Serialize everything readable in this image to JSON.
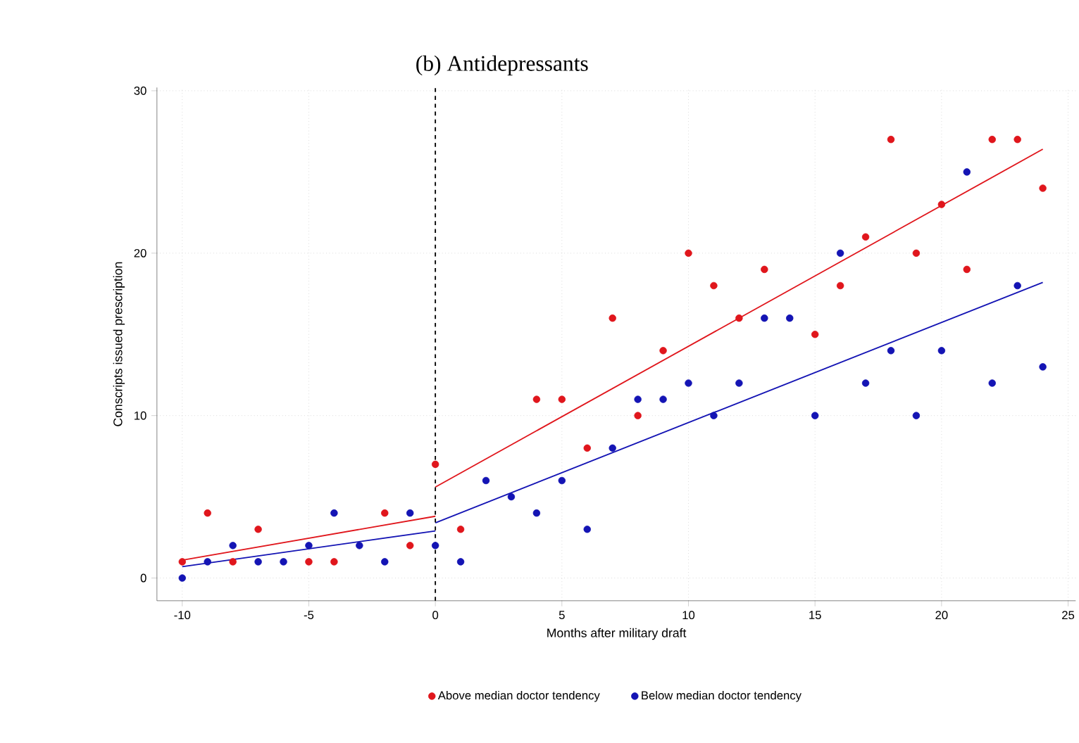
{
  "chart_data": {
    "type": "scatter",
    "title": "(b) Antidepressants",
    "xlabel": "Months after military draft",
    "ylabel": "Conscripts issued prescription",
    "x": [
      -10,
      -9,
      -8,
      -7,
      -6,
      -5,
      -4,
      -3,
      -2,
      -1,
      0,
      1,
      2,
      3,
      4,
      5,
      6,
      7,
      8,
      9,
      10,
      11,
      12,
      13,
      14,
      15,
      16,
      17,
      18,
      19,
      20,
      21,
      22,
      23,
      24
    ],
    "series": [
      {
        "name": "Above median doctor tendency",
        "marker": "circle",
        "color": "#e0161c",
        "values": [
          1,
          4,
          1,
          3,
          null,
          1,
          1,
          null,
          4,
          2,
          7,
          3,
          null,
          null,
          11,
          11,
          8,
          16,
          10,
          14,
          20,
          18,
          16,
          19,
          null,
          15,
          18,
          21,
          27,
          20,
          23,
          19,
          27,
          27,
          24
        ]
      },
      {
        "name": "Below median doctor tendency",
        "marker": "circle",
        "color": "#1414b4",
        "values": [
          0,
          1,
          2,
          1,
          1,
          2,
          4,
          2,
          1,
          4,
          2,
          1,
          6,
          5,
          4,
          6,
          3,
          8,
          11,
          11,
          12,
          10,
          12,
          16,
          16,
          10,
          20,
          12,
          14,
          10,
          14,
          25,
          12,
          18,
          13
        ]
      },
      {
        "type": "line",
        "marker": "none",
        "color": "#e0161c",
        "x": [
          -10,
          0
        ],
        "values": [
          1.1,
          3.8
        ]
      },
      {
        "type": "line",
        "marker": "none",
        "color": "#e0161c",
        "x": [
          0,
          24
        ],
        "values": [
          5.6,
          26.4
        ]
      },
      {
        "type": "line",
        "marker": "none",
        "color": "#1414b4",
        "x": [
          -10,
          0
        ],
        "values": [
          0.7,
          2.9
        ]
      },
      {
        "type": "line",
        "marker": "none",
        "color": "#1414b4",
        "x": [
          0,
          24
        ],
        "values": [
          3.4,
          18.2
        ]
      }
    ],
    "ref_lines": [
      {
        "axis": "x",
        "value": 0,
        "color": "#000000",
        "line_style": "dashed"
      }
    ],
    "xlim": [
      -11,
      25.3
    ],
    "ylim": [
      -1.4,
      30.2
    ],
    "xticks": [
      -10,
      -5,
      0,
      5,
      10,
      15,
      20,
      25
    ],
    "yticks": [
      0,
      10,
      20,
      30
    ],
    "grid": true,
    "legend": "bottom"
  }
}
